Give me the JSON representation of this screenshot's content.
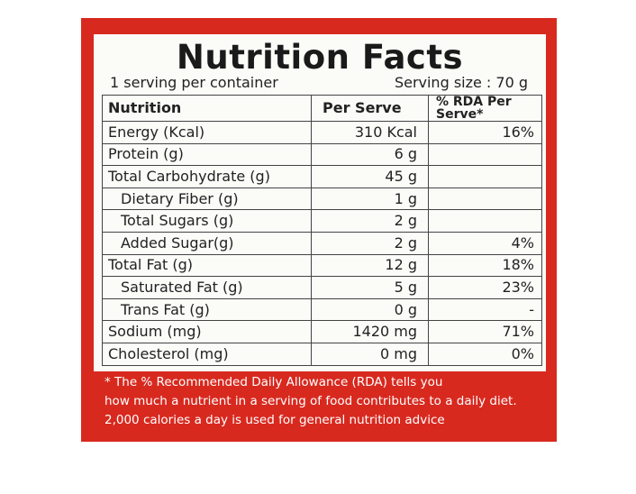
{
  "header": {
    "title": "Nutrition Facts",
    "servings": "1 serving per container",
    "serving_size": "Serving size : 70 g"
  },
  "table": {
    "columns": [
      "Nutrition",
      "Per Serve",
      "% RDA Per Serve*"
    ],
    "rows": [
      [
        "Energy (Kcal)",
        "310 Kcal",
        "16%"
      ],
      [
        "Protein (g)",
        "6 g",
        null
      ],
      [
        "Total Carbohydrate (g)",
        "45 g",
        null
      ],
      [
        "Dietary Fiber (g)",
        "1 g",
        null
      ],
      [
        "Total Sugars (g)",
        "2 g",
        null
      ],
      [
        "Added Sugar(g)",
        "2 g",
        "4%"
      ],
      [
        "Total Fat (g)",
        "12 g",
        "18%"
      ],
      [
        "Saturated Fat (g)",
        "5 g",
        "23%"
      ],
      [
        "Trans Fat (g)",
        "0 g",
        "-"
      ],
      [
        "Sodium (mg)",
        "1420 mg",
        "71%"
      ],
      [
        "Cholesterol (mg)",
        "0 mg",
        "0%"
      ]
    ]
  },
  "footnote": [
    "* The % Recommended Daily Allowance (RDA) tells you",
    "how much a nutrient in a serving of food contributes to a daily diet.",
    "2,000 calories a day is used for general nutrition advice"
  ]
}
